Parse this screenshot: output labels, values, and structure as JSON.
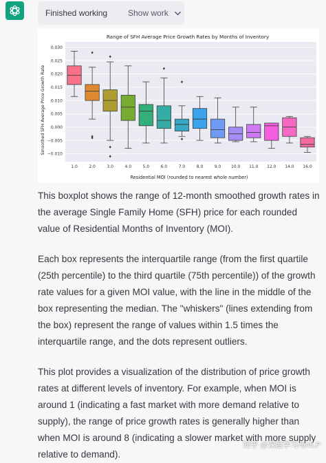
{
  "header": {
    "status": "Finished working",
    "show_work": "Show work"
  },
  "chart_data": {
    "type": "boxplot",
    "title": "Range of SFH Average Price Growth Rates by Months of Inventory",
    "xlabel": "Residential MOI (rounded to nearest whole number)",
    "ylabel": "Smoothed SFH Average Price Growth Rate",
    "ylim": [
      -0.013,
      0.032
    ],
    "yticks": [
      0.03,
      0.025,
      0.02,
      0.015,
      0.01,
      0.005,
      0.0,
      -0.005,
      -0.01
    ],
    "ytick_labels": [
      "0.030",
      "0.025",
      "0.020",
      "0.015",
      "0.010",
      "0.005",
      "0.000",
      "−0.005",
      "−0.010"
    ],
    "grid": true,
    "categories": [
      "1.0",
      "2.0",
      "3.0",
      "4.0",
      "5.0",
      "6.0",
      "7.0",
      "8.0",
      "9.0",
      "10.0",
      "11.0",
      "12.0",
      "14.0",
      "16.0"
    ],
    "boxes": [
      {
        "category": "1.0",
        "whisker_low": 0.0115,
        "q1": 0.016,
        "median": 0.0195,
        "q3": 0.023,
        "whisker_high": 0.0285,
        "outliers": [],
        "color": "#f77189"
      },
      {
        "category": "2.0",
        "whisker_low": 0.003,
        "q1": 0.01,
        "median": 0.0135,
        "q3": 0.016,
        "whisker_high": 0.0225,
        "outliers": [
          -0.004,
          -0.0035,
          0.028
        ],
        "color": "#dc8932"
      },
      {
        "category": "3.0",
        "whisker_low": -0.005,
        "q1": 0.006,
        "median": 0.01,
        "q3": 0.014,
        "whisker_high": 0.0245,
        "outliers": [
          -0.0075,
          -0.011,
          0.0265
        ],
        "color": "#ae9d31"
      },
      {
        "category": "4.0",
        "whisker_low": -0.008,
        "q1": 0.0025,
        "median": 0.0075,
        "q3": 0.012,
        "whisker_high": 0.023,
        "outliers": [],
        "color": "#77ab31"
      },
      {
        "category": "5.0",
        "whisker_low": -0.006,
        "q1": 0.0005,
        "median": 0.006,
        "q3": 0.0085,
        "whisker_high": 0.017,
        "outliers": [],
        "color": "#33b07a"
      },
      {
        "category": "6.0",
        "whisker_low": -0.006,
        "q1": -0.0005,
        "median": 0.0025,
        "q3": 0.008,
        "whisker_high": 0.0185,
        "outliers": [
          0.022
        ],
        "color": "#36ada4"
      },
      {
        "category": "7.0",
        "whisker_low": -0.0035,
        "q1": -0.0015,
        "median": 0.001,
        "q3": 0.003,
        "whisker_high": 0.008,
        "outliers": [
          -0.0045,
          0.017
        ],
        "color": "#38a9c5"
      },
      {
        "category": "8.0",
        "whisker_low": -0.005,
        "q1": -0.0005,
        "median": 0.003,
        "q3": 0.007,
        "whisker_high": 0.0115,
        "outliers": [],
        "color": "#3ba3ec"
      },
      {
        "category": "9.0",
        "whisker_low": -0.006,
        "q1": -0.004,
        "median": -0.001,
        "q3": 0.003,
        "whisker_high": 0.011,
        "outliers": [],
        "color": "#6e9bf4"
      },
      {
        "category": "10.0",
        "whisker_low": -0.0055,
        "q1": -0.005,
        "median": -0.0025,
        "q3": 0.0,
        "whisker_high": 0.0075,
        "outliers": [],
        "color": "#a48cf4"
      },
      {
        "category": "11.0",
        "whisker_low": -0.0055,
        "q1": -0.004,
        "median": -0.002,
        "q3": 0.001,
        "whisker_high": 0.0075,
        "outliers": [],
        "color": "#cc7af4"
      },
      {
        "category": "12.0",
        "whisker_low": -0.008,
        "q1": -0.005,
        "median": 0.0005,
        "q3": 0.0015,
        "whisker_high": 0.0015,
        "outliers": [],
        "color": "#f45fe2"
      },
      {
        "category": "14.0",
        "whisker_low": -0.006,
        "q1": -0.0035,
        "median": 0.0,
        "q3": 0.0035,
        "whisker_high": 0.004,
        "outliers": [],
        "color": "#f668c2"
      },
      {
        "category": "16.0",
        "whisker_low": -0.0095,
        "q1": -0.0075,
        "median": -0.0065,
        "q3": -0.004,
        "whisker_high": -0.0035,
        "outliers": [],
        "color": "#f66c9f"
      }
    ]
  },
  "paragraphs": [
    "This boxplot shows the range of 12-month smoothed growth rates in the average Single Family Home (SFH) price for each rounded value of Residential Months of Inventory (MOI).",
    "Each box represents the interquartile range (from the first quartile (25th percentile) to the third quartile (75th percentile)) of the growth rate values for a given MOI value, with the line in the middle of the box representing the median. The \"whiskers\" (lines extending from the box) represent the range of values within 1.5 times the interquartile range, and the dots represent outliers.",
    "This plot provides a visualization of the distribution of price growth rates at different levels of inventory. For example, when MOI is around 1 (indicating a fast market with more demand relative to supply), the range of price growth rates is generally higher than when MOI is around 8 (indicating a slower market with more supply relative to demand)."
  ],
  "watermark": {
    "text": "知乎 @深度学习与NLP"
  },
  "colors": {
    "avatar_bg": "#10a37f",
    "pill_bg": "#ececf1",
    "page_bg": "#f7f7f8"
  },
  "icons": {
    "avatar": "openai-logo-icon",
    "show_work": "chevron-down-icon"
  }
}
